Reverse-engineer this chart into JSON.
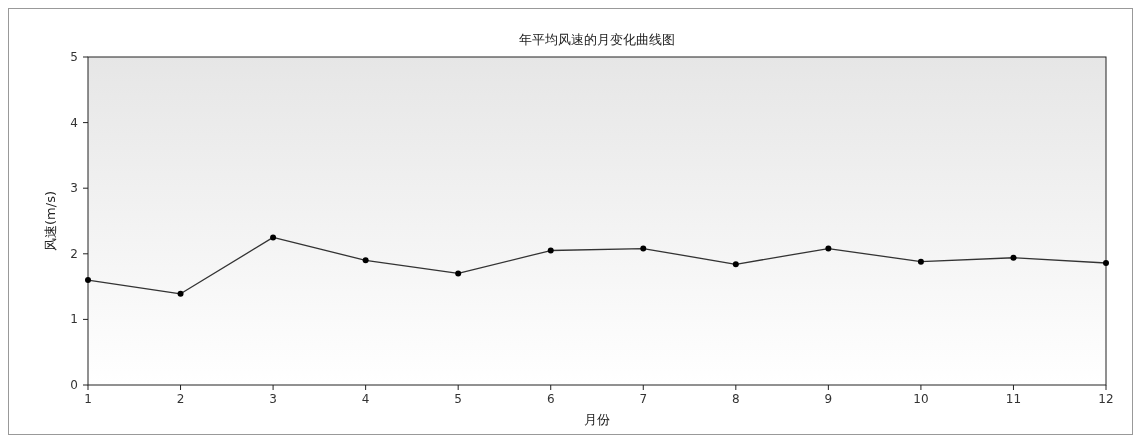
{
  "chart_data": {
    "type": "line",
    "title": "年平均风速的月变化曲线图",
    "xlabel": "月份",
    "ylabel": "风速(m/s)",
    "x": [
      1,
      2,
      3,
      4,
      5,
      6,
      7,
      8,
      9,
      10,
      11,
      12
    ],
    "series": [
      {
        "color": "#333333",
        "values": [
          1.6,
          1.39,
          2.25,
          1.9,
          1.7,
          2.05,
          2.08,
          1.84,
          2.08,
          1.88,
          1.94,
          1.86
        ]
      }
    ],
    "xlim": [
      1,
      12
    ],
    "xticks": [
      1,
      2,
      3,
      4,
      5,
      6,
      7,
      8,
      9,
      10,
      11,
      12
    ],
    "ylim": [
      0,
      5
    ],
    "yticks": [
      0,
      1,
      2,
      3,
      4,
      5
    ],
    "grid": false,
    "marker": "circle",
    "line_style": "solid"
  }
}
